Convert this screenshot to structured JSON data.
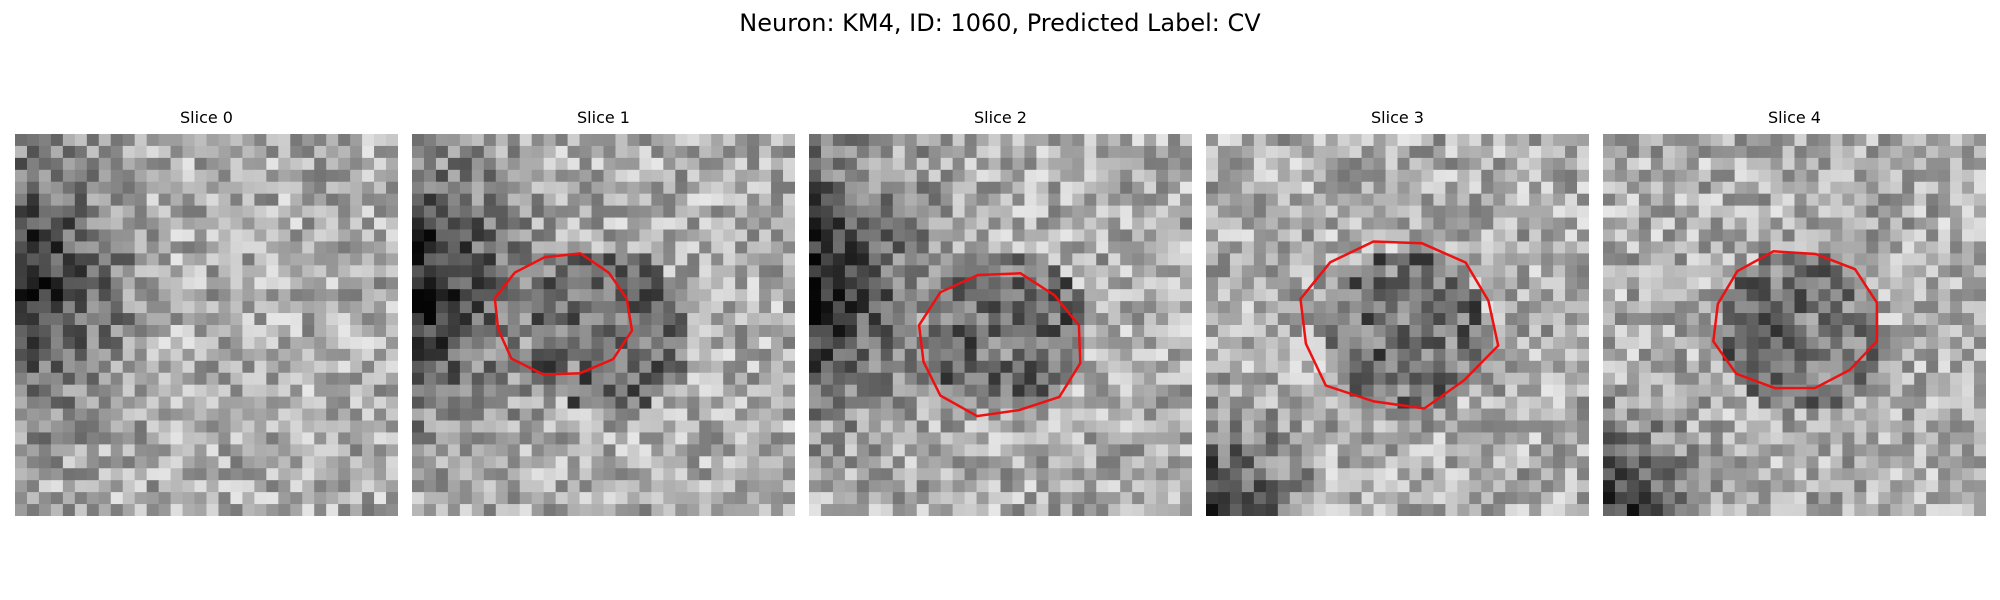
{
  "figure": {
    "title": "Neuron: KM4, ID: 1060, Predicted Label: CV"
  },
  "panels": [
    {
      "title": "Slice 0",
      "seed": 11,
      "dark_side": "left",
      "has_contour": false
    },
    {
      "title": "Slice 1",
      "seed": 23,
      "dark_side": "left",
      "has_contour": true
    },
    {
      "title": "Slice 2",
      "seed": 37,
      "dark_side": "left",
      "has_contour": true
    },
    {
      "title": "Slice 3",
      "seed": 41,
      "dark_side": "bottom-left",
      "has_contour": true
    },
    {
      "title": "Slice 4",
      "seed": 53,
      "dark_side": "bottom-left",
      "has_contour": true
    }
  ],
  "colors": {
    "contour": "#ee1111",
    "background": "#ffffff"
  }
}
